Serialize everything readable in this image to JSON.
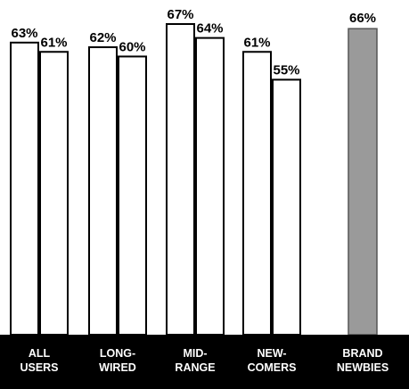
{
  "chart_data": {
    "type": "bar",
    "categories": [
      [
        "ALL",
        "USERS"
      ],
      [
        "LONG-",
        "WIRED"
      ],
      [
        "MID-",
        "RANGE"
      ],
      [
        "NEW-",
        "COMERS"
      ],
      [
        "BRAND",
        "NEWBIES"
      ]
    ],
    "series": [
      {
        "values": [
          63,
          62,
          67,
          61,
          66
        ]
      },
      {
        "values": [
          61,
          60,
          64,
          55,
          null
        ]
      }
    ],
    "data_labels": [
      [
        "63%",
        "62%",
        "67%",
        "61%",
        "66%"
      ],
      [
        "61%",
        "60%",
        "64%",
        "55%",
        ""
      ]
    ],
    "ylim": [
      0,
      67
    ],
    "grid": false,
    "legend": "none",
    "colors": {
      "bar_fill": "#ffffff",
      "bar_stroke": "#000000",
      "highlight_fill": "#9a9a9a",
      "axis_band": "#000000",
      "category_text": "#ffffff"
    }
  }
}
